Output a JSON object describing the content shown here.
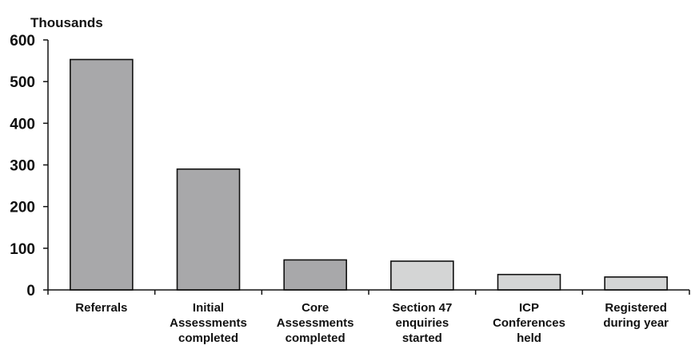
{
  "chart_data": {
    "type": "bar",
    "ylabel": "Thousands",
    "ylim": [
      0,
      600
    ],
    "yticks": [
      0,
      100,
      200,
      300,
      400,
      500,
      600
    ],
    "grid": false,
    "categories": [
      [
        "Referrals"
      ],
      [
        "Initial",
        "Assessments",
        "completed"
      ],
      [
        "Core",
        "Assessments",
        "completed"
      ],
      [
        "Section 47",
        "enquiries",
        "started"
      ],
      [
        "ICP",
        "Conferences",
        "held"
      ],
      [
        "Registered",
        "during year"
      ]
    ],
    "values": [
      553,
      290,
      72,
      69,
      37,
      31
    ],
    "colors": [
      "#a8a8aa",
      "#a8a8aa",
      "#a8a8aa",
      "#d4d5d5",
      "#d4d5d5",
      "#d4d5d5"
    ],
    "axis_color": "#111111"
  }
}
